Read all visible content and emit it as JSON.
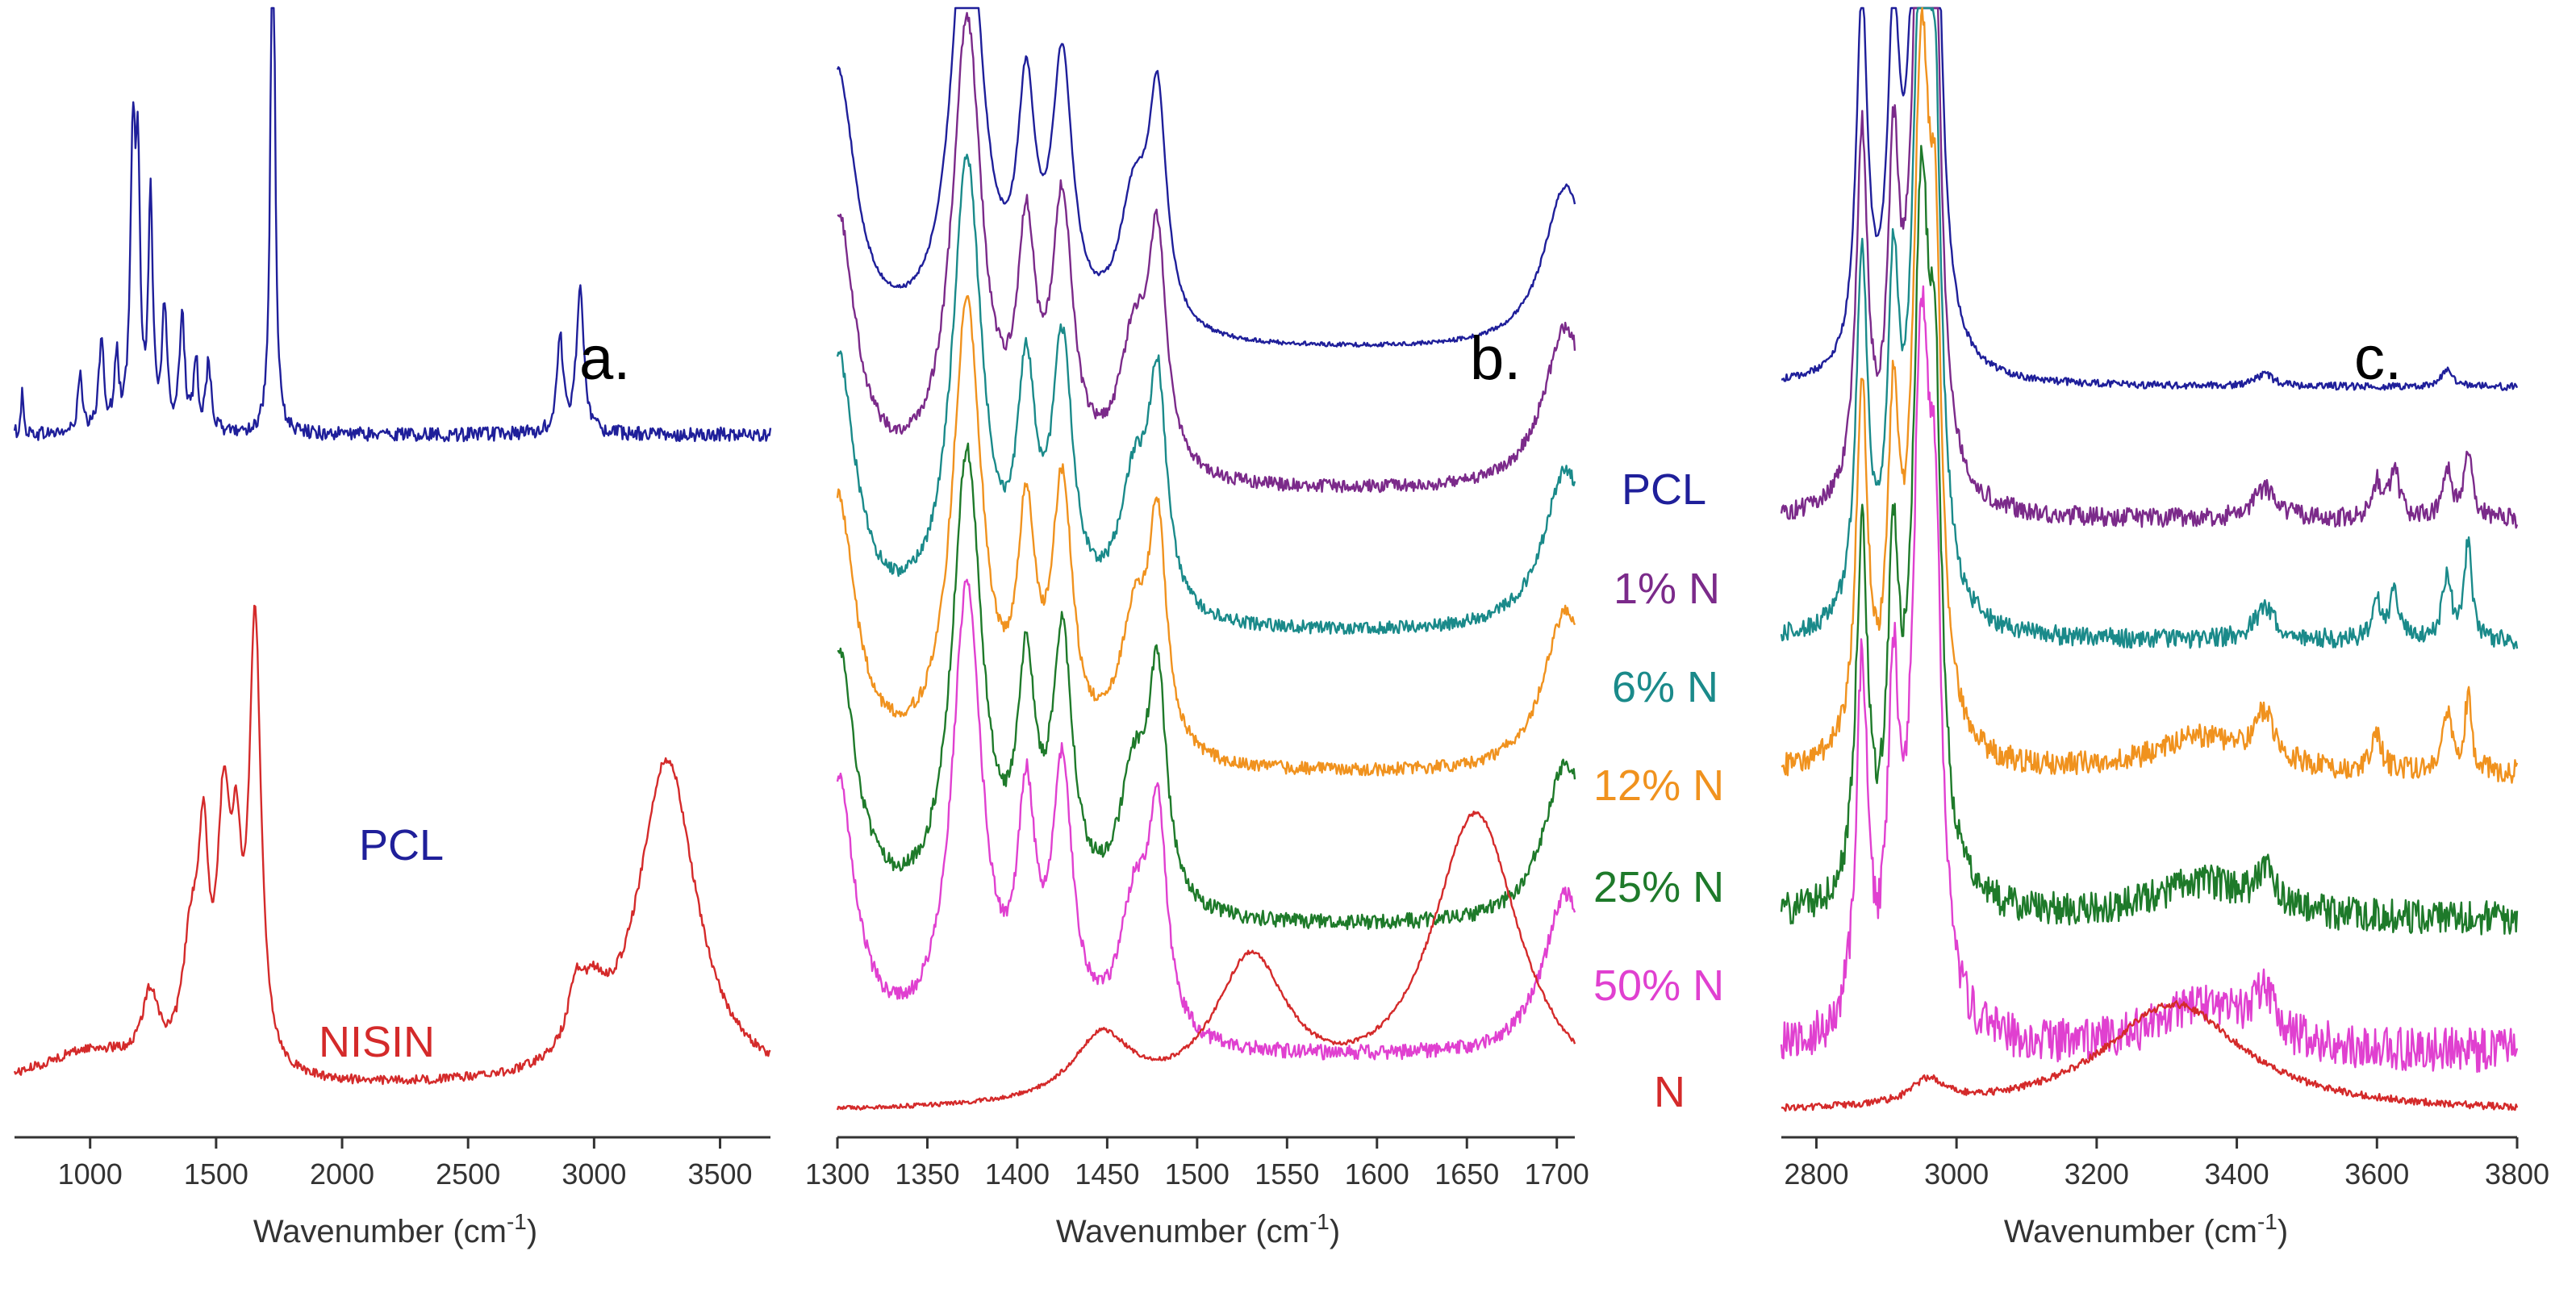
{
  "chart_data": [
    {
      "panel": "a.",
      "type": "line",
      "xlabel": "Wavenumber (cm",
      "xlabel_sup": "-1",
      "xlabel_end": ")",
      "xlim": [
        700,
        3700
      ],
      "xticks": [
        1000,
        1500,
        2000,
        2500,
        3000,
        3500
      ],
      "series": [
        {
          "name": "PCL",
          "color": "#1f1f9a",
          "offset": 0.55,
          "baseline": 0.03,
          "peaks": [
            [
              730,
              0.035,
              6
            ],
            [
              960,
              0.05,
              10
            ],
            [
              1045,
              0.08,
              12
            ],
            [
              1105,
              0.06,
              10
            ],
            [
              1170,
              0.24,
              12
            ],
            [
              1190,
              0.2,
              10
            ],
            [
              1240,
              0.2,
              10
            ],
            [
              1295,
              0.1,
              12
            ],
            [
              1365,
              0.1,
              12
            ],
            [
              1420,
              0.06,
              10
            ],
            [
              1470,
              0.06,
              12
            ],
            [
              1725,
              0.56,
              9
            ],
            [
              2865,
              0.08,
              15
            ],
            [
              2945,
              0.12,
              18
            ]
          ],
          "noise": 0.006
        },
        {
          "name": "NISIN",
          "color": "#d42a2a",
          "offset": 0.0,
          "baseline": 0.02,
          "peaks": [
            [
              1000,
              0.03,
              250
            ],
            [
              1240,
              0.06,
              40
            ],
            [
              1400,
              0.1,
              40
            ],
            [
              1450,
              0.16,
              25
            ],
            [
              1530,
              0.2,
              30
            ],
            [
              1580,
              0.14,
              25
            ],
            [
              1655,
              0.38,
              28
            ],
            [
              2930,
              0.05,
              40
            ],
            [
              3000,
              0.04,
              60
            ],
            [
              3290,
              0.28,
              140
            ]
          ],
          "noise": 0.004
        }
      ]
    },
    {
      "panel": "b.",
      "type": "line",
      "xlabel": "Wavenumber (cm",
      "xlabel_sup": "-1",
      "xlabel_end": ")",
      "xlim": [
        1300,
        1710
      ],
      "xticks": [
        1300,
        1350,
        1400,
        1450,
        1500,
        1550,
        1600,
        1650,
        1700
      ],
      "series": [
        {
          "name": "PCL",
          "color": "#1f1f9a",
          "offset": 0.7,
          "peaks": [
            [
              1300,
              0.25,
              12
            ],
            [
              1372,
              0.42,
              10
            ],
            [
              1405,
              0.2,
              6
            ],
            [
              1425,
              0.24,
              7
            ],
            [
              1465,
              0.12,
              10
            ],
            [
              1478,
              0.2,
              6
            ],
            [
              1705,
              0.15,
              15
            ]
          ],
          "noise": 0.002
        },
        {
          "name": "1% N",
          "color": "#7b2a8a",
          "offset": 0.57,
          "peaks": [
            [
              1300,
              0.25,
              12
            ],
            [
              1372,
              0.42,
              10
            ],
            [
              1405,
              0.2,
              6
            ],
            [
              1425,
              0.24,
              7
            ],
            [
              1465,
              0.12,
              10
            ],
            [
              1478,
              0.2,
              6
            ],
            [
              1705,
              0.15,
              15
            ]
          ],
          "noise": 0.006
        },
        {
          "name": "6% N",
          "color": "#1a8a8a",
          "offset": 0.44,
          "peaks": [
            [
              1300,
              0.25,
              12
            ],
            [
              1372,
              0.42,
              10
            ],
            [
              1405,
              0.2,
              6
            ],
            [
              1425,
              0.24,
              7
            ],
            [
              1465,
              0.12,
              10
            ],
            [
              1478,
              0.2,
              6
            ],
            [
              1705,
              0.15,
              15
            ]
          ],
          "noise": 0.006
        },
        {
          "name": "12% N",
          "color": "#f0921e",
          "offset": 0.31,
          "peaks": [
            [
              1300,
              0.25,
              12
            ],
            [
              1372,
              0.42,
              10
            ],
            [
              1405,
              0.2,
              6
            ],
            [
              1425,
              0.24,
              7
            ],
            [
              1465,
              0.12,
              10
            ],
            [
              1478,
              0.2,
              6
            ],
            [
              1705,
              0.15,
              15
            ]
          ],
          "noise": 0.006
        },
        {
          "name": "25% N",
          "color": "#1e7a2a",
          "offset": 0.17,
          "peaks": [
            [
              1300,
              0.25,
              12
            ],
            [
              1372,
              0.42,
              10
            ],
            [
              1405,
              0.2,
              6
            ],
            [
              1425,
              0.24,
              7
            ],
            [
              1465,
              0.12,
              10
            ],
            [
              1478,
              0.2,
              6
            ],
            [
              1705,
              0.15,
              15
            ]
          ],
          "noise": 0.007
        },
        {
          "name": "50% N",
          "color": "#e040d0",
          "offset": 0.05,
          "peaks": [
            [
              1300,
              0.25,
              12
            ],
            [
              1372,
              0.42,
              10
            ],
            [
              1405,
              0.2,
              6
            ],
            [
              1425,
              0.24,
              7
            ],
            [
              1465,
              0.12,
              10
            ],
            [
              1478,
              0.2,
              6
            ],
            [
              1705,
              0.15,
              15
            ]
          ],
          "noise": 0.007
        },
        {
          "name": "N",
          "color": "#d42a2a",
          "offset": 0.0,
          "baseline": 0.0,
          "peaks": [
            [
              1447,
              0.06,
              20
            ],
            [
              1530,
              0.13,
              25
            ],
            [
              1655,
              0.27,
              30
            ]
          ],
          "noise": 0.002
        }
      ]
    },
    {
      "panel": "c.",
      "type": "line",
      "xlabel": "Wavenumber (cm",
      "xlabel_sup": "-1",
      "xlabel_end": ")",
      "xlim": [
        2750,
        3800
      ],
      "xticks": [
        2800,
        3000,
        3200,
        3400,
        3600,
        3800
      ],
      "series": [
        {
          "name": "PCL",
          "color": "#1f1f9a",
          "offset": 0.6,
          "peaks": [
            [
              2865,
              0.3,
              10
            ],
            [
              2910,
              0.25,
              10
            ],
            [
              2950,
              0.55,
              15
            ],
            [
              2970,
              0.3,
              10
            ],
            [
              3440,
              0.01,
              15
            ],
            [
              3700,
              0.015,
              10
            ]
          ],
          "noise": 0.003
        },
        {
          "name": "1% N",
          "color": "#7b2a8a",
          "offset": 0.49,
          "peaks": [
            [
              2865,
              0.3,
              10
            ],
            [
              2910,
              0.25,
              10
            ],
            [
              2950,
              0.55,
              15
            ],
            [
              2970,
              0.3,
              10
            ],
            [
              3440,
              0.025,
              20
            ],
            [
              3600,
              0.03,
              8
            ],
            [
              3625,
              0.04,
              8
            ],
            [
              3700,
              0.04,
              8
            ],
            [
              3730,
              0.05,
              8
            ]
          ],
          "noise": 0.008
        },
        {
          "name": "6% N",
          "color": "#1a8a8a",
          "offset": 0.39,
          "peaks": [
            [
              2865,
              0.3,
              10
            ],
            [
              2910,
              0.25,
              10
            ],
            [
              2950,
              0.55,
              15
            ],
            [
              2970,
              0.3,
              10
            ],
            [
              3440,
              0.025,
              20
            ],
            [
              3600,
              0.03,
              8
            ],
            [
              3625,
              0.04,
              8
            ],
            [
              3700,
              0.05,
              8
            ],
            [
              3730,
              0.08,
              6
            ]
          ],
          "noise": 0.008
        },
        {
          "name": "12% N",
          "color": "#f0921e",
          "offset": 0.28,
          "peaks": [
            [
              2865,
              0.3,
              10
            ],
            [
              2910,
              0.25,
              10
            ],
            [
              2950,
              0.55,
              15
            ],
            [
              2970,
              0.3,
              10
            ],
            [
              3350,
              0.03,
              80
            ],
            [
              3440,
              0.04,
              15
            ],
            [
              3600,
              0.03,
              8
            ],
            [
              3700,
              0.05,
              8
            ],
            [
              3730,
              0.06,
              6
            ]
          ],
          "noise": 0.01
        },
        {
          "name": "25% N",
          "color": "#1e7a2a",
          "offset": 0.16,
          "peaks": [
            [
              2865,
              0.3,
              10
            ],
            [
              2910,
              0.25,
              10
            ],
            [
              2950,
              0.55,
              15
            ],
            [
              2970,
              0.3,
              10
            ],
            [
              3350,
              0.03,
              80
            ],
            [
              3440,
              0.03,
              15
            ]
          ],
          "noise": 0.014
        },
        {
          "name": "50% N",
          "color": "#e040d0",
          "offset": 0.05,
          "peaks": [
            [
              2865,
              0.3,
              10
            ],
            [
              2910,
              0.25,
              10
            ],
            [
              2950,
              0.55,
              15
            ],
            [
              2970,
              0.3,
              10
            ],
            [
              3350,
              0.04,
              80
            ],
            [
              3440,
              0.04,
              15
            ]
          ],
          "noise": 0.018
        },
        {
          "name": "N",
          "color": "#d42a2a",
          "offset": 0.0,
          "baseline": 0.0,
          "peaks": [
            [
              2960,
              0.02,
              30
            ],
            [
              3310,
              0.09,
              120
            ]
          ],
          "noise": 0.003
        }
      ]
    }
  ]
}
